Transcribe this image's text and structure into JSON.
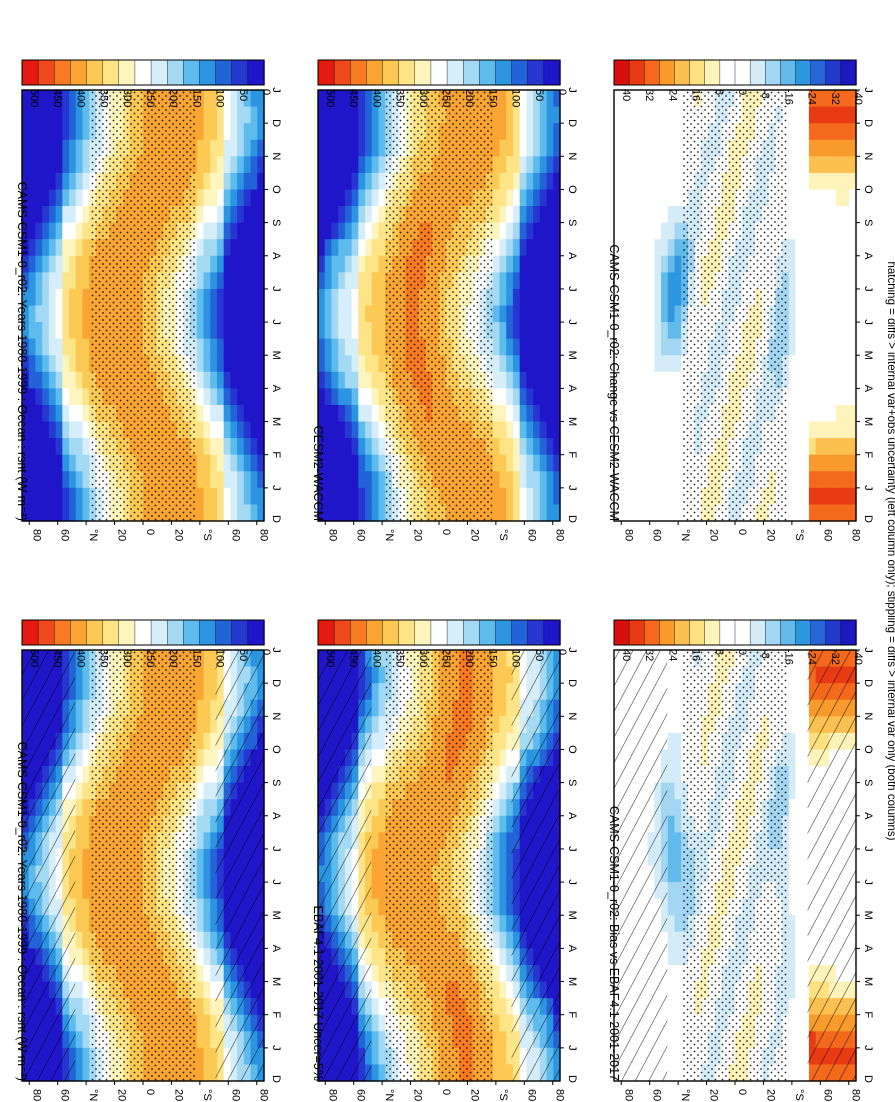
{
  "figure": {
    "footer_note": "hatching = diffs > internal var+obs uncertainty (left column only); stippling = diffs > internal var only (both columns)"
  },
  "colors": {
    "abs_ramp": [
      "#e4190f",
      "#ee4a1b",
      "#f87a22",
      "#faa434",
      "#fbc954",
      "#fde487",
      "#fdf5be",
      "#ffffff",
      "#d6eef9",
      "#a4d9f3",
      "#5dbbed",
      "#2b95e2",
      "#2363d8",
      "#2536d1",
      "#1e16c8"
    ],
    "diff_ramp": [
      "#d7100e",
      "#e83a13",
      "#f4691c",
      "#f99a2c",
      "#fbc04f",
      "#fde07f",
      "#fef3b9",
      "#ffffff",
      "#ffffff",
      "#d3ecf8",
      "#a2d6f2",
      "#62baeb",
      "#2e96e1",
      "#2766d6",
      "#2238cb",
      "#1b18c1"
    ]
  },
  "chart_data": [
    {
      "id": "bias-model",
      "type": "heatmap",
      "title": "CAMS-CSM1-0_r02: Years 1980-1999 : Ocean : rsnt (W m⁻²)",
      "x_tick_labels": [
        "J",
        "F",
        "M",
        "A",
        "M",
        "J",
        "J",
        "A",
        "S",
        "O",
        "N",
        "D",
        "J"
      ],
      "x_axis_end_label": "D",
      "y_tick_labels": [
        "80",
        "60",
        "°N",
        "20",
        "0",
        "20",
        "°S",
        "60",
        "80"
      ],
      "y_range": [
        90,
        -90
      ],
      "colorbar_labels": [
        "500",
        "450",
        "400",
        "350",
        "300",
        "250",
        "200",
        "150",
        "100",
        "50",
        "0"
      ],
      "colorbar_range": [
        0,
        525
      ],
      "scale": "abs",
      "hatching": true,
      "stippling": true
    },
    {
      "id": "bias-obs",
      "type": "heatmap",
      "title": "EBAF4.1 2001-2017 Uncer=5%",
      "x_tick_labels": [
        "J",
        "F",
        "M",
        "A",
        "M",
        "J",
        "J",
        "A",
        "S",
        "O",
        "N",
        "D",
        "J"
      ],
      "x_axis_end_label": "D",
      "y_tick_labels": [
        "80",
        "60",
        "°N",
        "20",
        "0",
        "20",
        "°S",
        "60",
        "80"
      ],
      "y_range": [
        90,
        -90
      ],
      "colorbar_labels": [
        "500",
        "450",
        "400",
        "350",
        "300",
        "250",
        "200",
        "150",
        "100",
        "50",
        "0"
      ],
      "colorbar_range": [
        0,
        525
      ],
      "scale": "abs",
      "hatching": true,
      "stippling": true
    },
    {
      "id": "bias-diff",
      "type": "heatmap",
      "title": "CAMS-CSM1-0_r02: Bias vs EBAF4.1 2001-2017",
      "x_tick_labels": [
        "J",
        "F",
        "M",
        "A",
        "M",
        "J",
        "J",
        "A",
        "S",
        "O",
        "N",
        "D",
        "J"
      ],
      "x_axis_end_label": "D",
      "y_tick_labels": [
        "80",
        "60",
        "°N",
        "20",
        "0",
        "20",
        "°S",
        "60",
        "80"
      ],
      "y_range": [
        90,
        -90
      ],
      "colorbar_labels": [
        "40",
        "32",
        "24",
        "16",
        "8",
        "0",
        "-8",
        "-16",
        "-24",
        "-32",
        "-40"
      ],
      "colorbar_range": [
        -44,
        44
      ],
      "scale": "diff",
      "hatching": true,
      "stippling": true
    },
    {
      "id": "change-model",
      "type": "heatmap",
      "title": "CAMS-CSM1-0_r02: Years 1980-1999 : Ocean : rsnt (W m⁻²)",
      "x_tick_labels": [
        "J",
        "F",
        "M",
        "A",
        "M",
        "J",
        "J",
        "A",
        "S",
        "O",
        "N",
        "D",
        "J"
      ],
      "x_axis_end_label": "D",
      "y_tick_labels": [
        "80",
        "60",
        "°N",
        "20",
        "0",
        "20",
        "°S",
        "60",
        "80"
      ],
      "y_range": [
        90,
        -90
      ],
      "colorbar_labels": [
        "500",
        "450",
        "400",
        "350",
        "300",
        "250",
        "200",
        "150",
        "100",
        "50",
        "0"
      ],
      "colorbar_range": [
        0,
        525
      ],
      "scale": "abs",
      "hatching": false,
      "stippling": true
    },
    {
      "id": "change-ref",
      "type": "heatmap",
      "title": "CESM2-WACCM",
      "x_tick_labels": [
        "J",
        "F",
        "M",
        "A",
        "M",
        "J",
        "J",
        "A",
        "S",
        "O",
        "N",
        "D",
        "J"
      ],
      "x_axis_end_label": "D",
      "y_tick_labels": [
        "80",
        "60",
        "°N",
        "20",
        "0",
        "20",
        "°S",
        "60",
        "80"
      ],
      "y_range": [
        90,
        -90
      ],
      "colorbar_labels": [
        "500",
        "450",
        "400",
        "350",
        "300",
        "250",
        "200",
        "150",
        "100",
        "50",
        "0"
      ],
      "colorbar_range": [
        0,
        525
      ],
      "scale": "abs",
      "hatching": false,
      "stippling": true
    },
    {
      "id": "change-diff",
      "type": "heatmap",
      "title": "CAMS-CSM1-0_r02: Change vs CESM2-WACCM",
      "x_tick_labels": [
        "J",
        "F",
        "M",
        "A",
        "M",
        "J",
        "J",
        "A",
        "S",
        "O",
        "N",
        "D",
        "J"
      ],
      "x_axis_end_label": "D",
      "y_tick_labels": [
        "80",
        "60",
        "°N",
        "20",
        "0",
        "20",
        "°S",
        "60",
        "80"
      ],
      "y_range": [
        90,
        -90
      ],
      "colorbar_labels": [
        "40",
        "32",
        "24",
        "16",
        "8",
        "0",
        "-8",
        "-16",
        "-24",
        "-32",
        "-40"
      ],
      "colorbar_range": [
        -44,
        44
      ],
      "scale": "diff",
      "hatching": false,
      "stippling": true
    }
  ]
}
